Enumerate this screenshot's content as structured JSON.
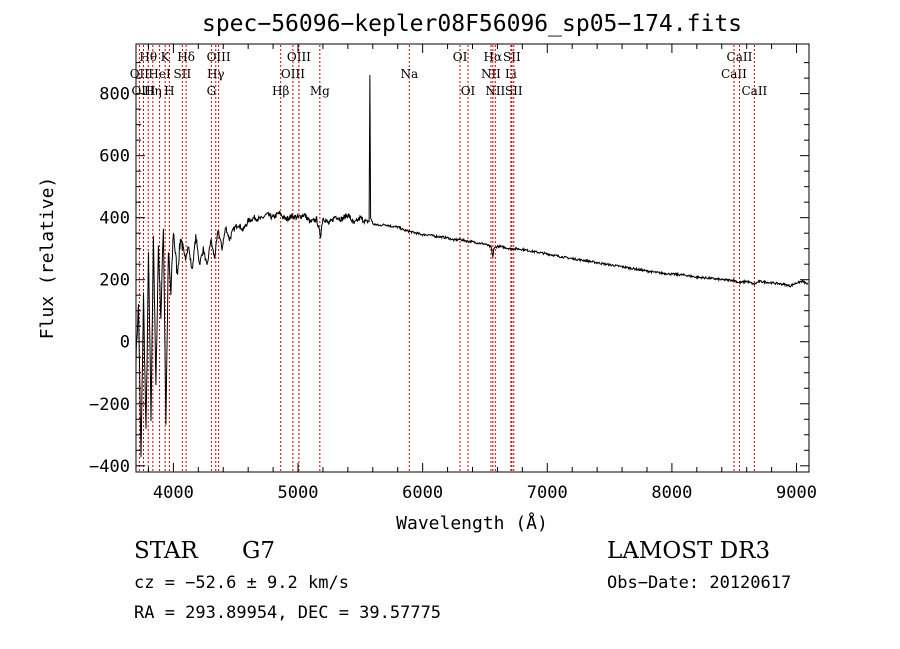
{
  "chart_data": {
    "type": "line",
    "title": "spec−56096−kepler08F56096_sp05−174.fits",
    "xlabel": "Wavelength (Å)",
    "ylabel": "Flux (relative)",
    "xlim": [
      3700,
      9100
    ],
    "ylim": [
      -420,
      960
    ],
    "xticks": [
      4000,
      5000,
      6000,
      7000,
      8000,
      9000
    ],
    "xtick_labels": [
      "4000",
      "5000",
      "6000",
      "7000",
      "8000",
      "9000"
    ],
    "yticks": [
      -400,
      -200,
      0,
      200,
      400,
      600,
      800
    ],
    "ytick_labels": [
      "−400",
      "−200",
      "0",
      "200",
      "400",
      "600",
      "800"
    ],
    "grid": false,
    "series": [
      {
        "name": "flux",
        "x": [
          3700,
          3720,
          3740,
          3760,
          3780,
          3800,
          3820,
          3840,
          3860,
          3880,
          3900,
          3920,
          3940,
          3960,
          3980,
          4000,
          4030,
          4060,
          4090,
          4120,
          4150,
          4180,
          4210,
          4240,
          4270,
          4300,
          4330,
          4360,
          4390,
          4420,
          4450,
          4480,
          4520,
          4560,
          4600,
          4650,
          4700,
          4750,
          4800,
          4850,
          4900,
          4950,
          5000,
          5050,
          5100,
          5150,
          5180,
          5200,
          5250,
          5300,
          5350,
          5400,
          5450,
          5500,
          5550,
          5570,
          5577,
          5582,
          5600,
          5650,
          5700,
          5750,
          5800,
          5850,
          5900,
          5950,
          6000,
          6050,
          6100,
          6150,
          6200,
          6250,
          6300,
          6350,
          6400,
          6450,
          6500,
          6550,
          6563,
          6570,
          6600,
          6650,
          6700,
          6750,
          6800,
          6900,
          7000,
          7100,
          7200,
          7300,
          7400,
          7500,
          7600,
          7700,
          7800,
          7900,
          8000,
          8100,
          8200,
          8300,
          8400,
          8500,
          8540,
          8600,
          8660,
          8700,
          8800,
          8900,
          8950,
          9000,
          9050,
          9090
        ],
        "y": [
          -50,
          120,
          -380,
          150,
          -300,
          280,
          -250,
          350,
          -150,
          310,
          80,
          380,
          -260,
          290,
          150,
          360,
          220,
          340,
          260,
          310,
          230,
          340,
          250,
          300,
          240,
          330,
          270,
          360,
          300,
          370,
          330,
          360,
          380,
          360,
          390,
          400,
          395,
          410,
          400,
          415,
          395,
          405,
          400,
          410,
          385,
          395,
          340,
          400,
          380,
          405,
          395,
          410,
          380,
          400,
          385,
          390,
          860,
          400,
          380,
          375,
          378,
          372,
          370,
          360,
          355,
          350,
          345,
          345,
          340,
          338,
          335,
          328,
          330,
          325,
          322,
          318,
          315,
          305,
          270,
          300,
          308,
          305,
          300,
          300,
          298,
          290,
          283,
          275,
          268,
          262,
          255,
          248,
          242,
          235,
          228,
          222,
          218,
          215,
          208,
          205,
          200,
          198,
          190,
          195,
          185,
          195,
          190,
          185,
          180,
          190,
          195,
          185
        ]
      }
    ],
    "line_markers": [
      {
        "label": "Hθ",
        "wavelength": 3798,
        "row": 1
      },
      {
        "label": "OII",
        "wavelength": 3727,
        "row": 2
      },
      {
        "label": "OIII",
        "wavelength": 3760,
        "row": 3
      },
      {
        "label": "Hη",
        "wavelength": 3835,
        "row": 3
      },
      {
        "label": "HeI",
        "wavelength": 3889,
        "row": 2
      },
      {
        "label": "K",
        "wavelength": 3934,
        "row": 1
      },
      {
        "label": "H",
        "wavelength": 3968,
        "row": 3
      },
      {
        "label": "SII",
        "wavelength": 4072,
        "row": 2
      },
      {
        "label": "Hδ",
        "wavelength": 4102,
        "row": 1
      },
      {
        "label": "Hγ",
        "wavelength": 4340,
        "row": 2
      },
      {
        "label": "G",
        "wavelength": 4305,
        "row": 3
      },
      {
        "label": "OIII",
        "wavelength": 4363,
        "row": 1
      },
      {
        "label": "Hβ",
        "wavelength": 4861,
        "row": 3
      },
      {
        "label": "OIII",
        "wavelength": 4959,
        "row": 2
      },
      {
        "label": "OIII",
        "wavelength": 5007,
        "row": 1
      },
      {
        "label": "Mg",
        "wavelength": 5175,
        "row": 3
      },
      {
        "label": "Na",
        "wavelength": 5893,
        "row": 2
      },
      {
        "label": "OI",
        "wavelength": 6300,
        "row": 1
      },
      {
        "label": "OI",
        "wavelength": 6364,
        "row": 3
      },
      {
        "label": "NII",
        "wavelength": 6548,
        "row": 2
      },
      {
        "label": "Hα",
        "wavelength": 6563,
        "row": 1
      },
      {
        "label": "NII",
        "wavelength": 6583,
        "row": 3
      },
      {
        "label": "Li",
        "wavelength": 6708,
        "row": 2
      },
      {
        "label": "SII",
        "wavelength": 6716,
        "row": 1
      },
      {
        "label": "SII",
        "wavelength": 6731,
        "row": 3
      },
      {
        "label": "CaII",
        "wavelength": 8498,
        "row": 2
      },
      {
        "label": "CaII",
        "wavelength": 8542,
        "row": 1
      },
      {
        "label": "CaII",
        "wavelength": 8662,
        "row": 3
      }
    ]
  },
  "info": {
    "object_type": "STAR",
    "spectral_class": "G7",
    "survey": "LAMOST DR3",
    "cz": "cz = −52.6 ± 9.2 km/s",
    "obs_date": "Obs−Date: 20120617",
    "radec": "RA = 293.89954, DEC =  39.57775"
  }
}
